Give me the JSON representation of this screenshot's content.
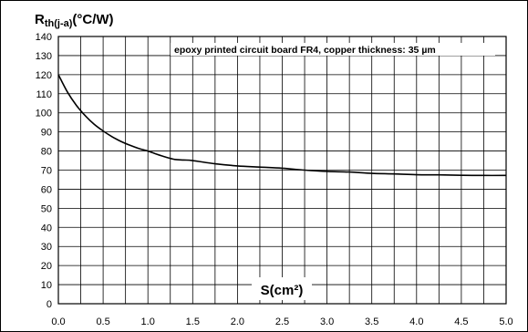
{
  "chart_data": {
    "type": "line",
    "ylabel": {
      "prefix": "R",
      "subscript": "th(j-a)",
      "unit": "(°C/W)"
    },
    "xlabel": "S(cm²)",
    "annotation": "epoxy printed circuit board FR4, copper thickness: 35 µm",
    "xlim": [
      0,
      5
    ],
    "ylim": [
      0,
      140
    ],
    "x_ticks": [
      "0.0",
      "0.5",
      "1.0",
      "1.5",
      "2.0",
      "2.5",
      "3.0",
      "3.5",
      "4.0",
      "4.5",
      "5.0"
    ],
    "y_ticks": [
      "0",
      "10",
      "20",
      "30",
      "40",
      "50",
      "60",
      "70",
      "80",
      "90",
      "100",
      "110",
      "120",
      "130",
      "140"
    ],
    "grid": true,
    "series": [
      {
        "x": [
          0.0,
          0.1,
          0.2,
          0.3,
          0.4,
          0.5,
          0.6,
          0.7,
          0.8,
          0.9,
          1.0,
          1.1,
          1.2,
          1.3,
          1.4,
          1.5,
          1.75,
          2.0,
          2.25,
          2.5,
          2.75,
          3.0,
          3.25,
          3.5,
          3.75,
          4.0,
          4.25,
          4.5,
          4.75,
          5.0
        ],
        "y": [
          120,
          111,
          104,
          98.5,
          94,
          90.5,
          87.5,
          85,
          83,
          81.3,
          80,
          78.3,
          76.8,
          75.6,
          75.3,
          75,
          73.3,
          72.2,
          71.6,
          71,
          70,
          69.3,
          69,
          68.3,
          68,
          67.6,
          67.5,
          67.3,
          67.2,
          67.2
        ],
        "color": "#000000"
      }
    ]
  }
}
